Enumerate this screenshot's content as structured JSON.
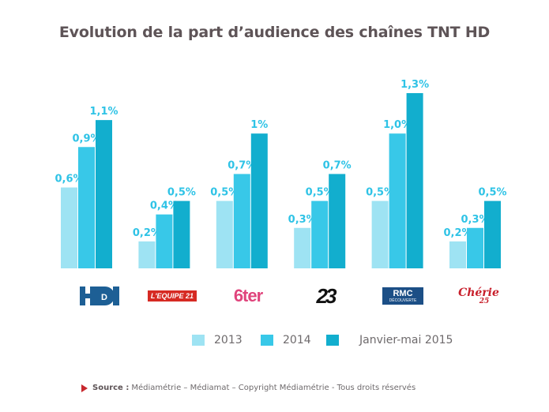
{
  "chart_data": {
    "type": "bar",
    "title": "Evolution de la part d’audience des chaînes TNT HD",
    "xlabel": "",
    "ylabel": "",
    "ylim": [
      0,
      1.3
    ],
    "grid": false,
    "legend_position": "bottom",
    "categories": [
      "HD1",
      "L'ÉQUIPE 21",
      "6ter",
      "Numéro 23",
      "RMC Découverte",
      "Chérie 25"
    ],
    "series": [
      {
        "name": "2013",
        "color": "#9ee3f3",
        "values": [
          0.6,
          0.2,
          0.5,
          0.3,
          0.5,
          0.2
        ],
        "labels": [
          "0,6%",
          "0,2%",
          "0,5%",
          "0,3%",
          "0,5%",
          "0,2%"
        ]
      },
      {
        "name": "2014",
        "color": "#38c8e8",
        "values": [
          0.9,
          0.4,
          0.7,
          0.5,
          1.0,
          0.3
        ],
        "labels": [
          "0,9%",
          "0,4%",
          "0,7%",
          "0,5%",
          "1,0%",
          "0,3%"
        ]
      },
      {
        "name": "Janvier-mai 2015",
        "color": "#12aece",
        "values": [
          1.1,
          0.5,
          1.0,
          0.7,
          1.3,
          0.5
        ],
        "labels": [
          "1,1%",
          "0,5%",
          "1%",
          "0,7%",
          "1,3%",
          "0,5%"
        ]
      }
    ],
    "label_color": "#2fc3e6"
  },
  "logos": [
    {
      "name": "hd1-logo",
      "text": "HD1",
      "color": "#1d5f95"
    },
    {
      "name": "lequipe21-logo",
      "text": "L'EQUIPE 21",
      "color": "#d62a23"
    },
    {
      "name": "6ter-logo",
      "text": "6ter",
      "color": "#e0447c"
    },
    {
      "name": "numero23-logo",
      "text": "23",
      "color": "#111111"
    },
    {
      "name": "rmc-decouverte-logo",
      "text": "RMC",
      "subtext": "DÉCOUVERTE",
      "color": "#1c4f86"
    },
    {
      "name": "cherie25-logo",
      "text": "Chérie",
      "subtext": "25",
      "color": "#c8202c"
    }
  ],
  "footer": {
    "source_label": "Source :",
    "source_text": "Médiamétrie – Médiamat – Copyright Médiamétrie - Tous droits réservés"
  }
}
